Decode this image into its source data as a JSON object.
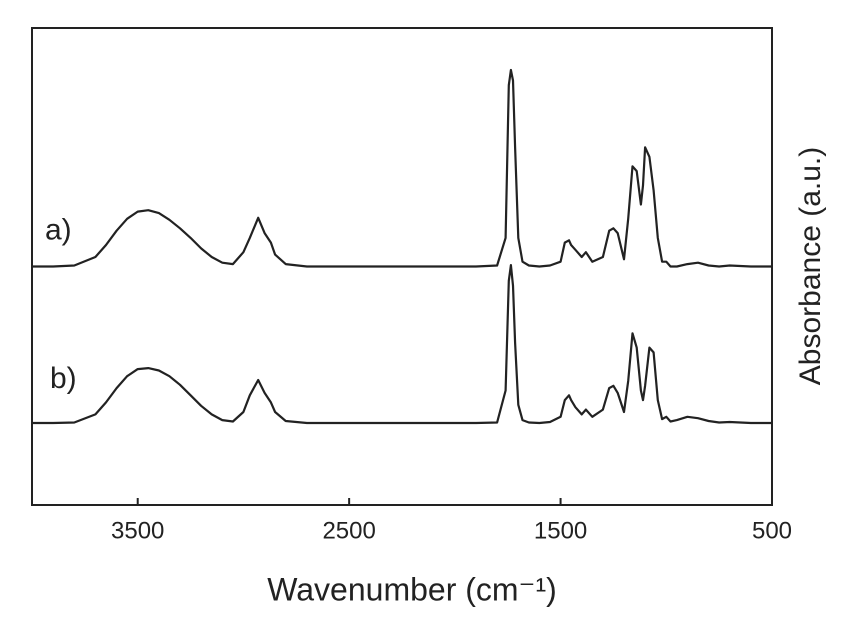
{
  "chart_data": {
    "type": "line",
    "x_label": "Wavenumber (cm⁻¹)",
    "y_label": "Absorbance (a.u.)",
    "x": [
      4000,
      3900,
      3800,
      3700,
      3650,
      3600,
      3550,
      3500,
      3450,
      3400,
      3350,
      3300,
      3250,
      3200,
      3150,
      3100,
      3050,
      3000,
      2970,
      2930,
      2900,
      2870,
      2850,
      2800,
      2700,
      2500,
      2300,
      2100,
      1900,
      1800,
      1760,
      1745,
      1735,
      1725,
      1715,
      1700,
      1680,
      1650,
      1600,
      1550,
      1500,
      1480,
      1460,
      1450,
      1430,
      1400,
      1380,
      1350,
      1300,
      1270,
      1250,
      1230,
      1200,
      1180,
      1160,
      1140,
      1120,
      1110,
      1100,
      1080,
      1060,
      1040,
      1020,
      1000,
      980,
      950,
      900,
      850,
      800,
      750,
      700,
      600,
      500
    ],
    "series": [
      {
        "name": "a)",
        "color": "#222222",
        "values": [
          5.0,
          5.0,
          5.02,
          5.2,
          5.45,
          5.75,
          6.0,
          6.15,
          6.18,
          6.12,
          5.98,
          5.8,
          5.6,
          5.38,
          5.2,
          5.08,
          5.05,
          5.3,
          5.6,
          6.02,
          5.7,
          5.5,
          5.25,
          5.05,
          5.0,
          5.0,
          5.0,
          5.0,
          5.0,
          5.02,
          5.6,
          8.8,
          9.12,
          8.9,
          7.5,
          5.6,
          5.1,
          5.02,
          5.0,
          5.02,
          5.1,
          5.5,
          5.55,
          5.45,
          5.35,
          5.2,
          5.3,
          5.1,
          5.2,
          5.75,
          5.8,
          5.7,
          5.15,
          6.0,
          7.1,
          7.0,
          6.3,
          6.7,
          7.5,
          7.3,
          6.6,
          5.6,
          5.1,
          5.1,
          5.0,
          5.0,
          5.05,
          5.08,
          5.02,
          5.0,
          5.02,
          5.0,
          5.0
        ]
      },
      {
        "name": "b)",
        "color": "#222222",
        "values": [
          1.72,
          1.72,
          1.73,
          1.9,
          2.15,
          2.45,
          2.7,
          2.85,
          2.87,
          2.82,
          2.7,
          2.52,
          2.3,
          2.08,
          1.9,
          1.78,
          1.75,
          1.95,
          2.3,
          2.62,
          2.35,
          2.15,
          1.95,
          1.76,
          1.72,
          1.72,
          1.72,
          1.72,
          1.72,
          1.73,
          2.4,
          4.7,
          5.03,
          4.6,
          3.4,
          2.1,
          1.78,
          1.73,
          1.72,
          1.74,
          1.85,
          2.2,
          2.3,
          2.2,
          2.05,
          1.9,
          2.0,
          1.85,
          2.0,
          2.45,
          2.5,
          2.35,
          1.95,
          2.6,
          3.6,
          3.3,
          2.4,
          2.2,
          2.5,
          3.3,
          3.2,
          2.2,
          1.8,
          1.85,
          1.75,
          1.78,
          1.85,
          1.82,
          1.76,
          1.73,
          1.74,
          1.72,
          1.72
        ]
      }
    ],
    "xlim": [
      4000,
      500
    ],
    "xticks": [
      3500,
      2500,
      1500,
      500
    ],
    "ylim": [
      0,
      10
    ],
    "grid": false
  }
}
